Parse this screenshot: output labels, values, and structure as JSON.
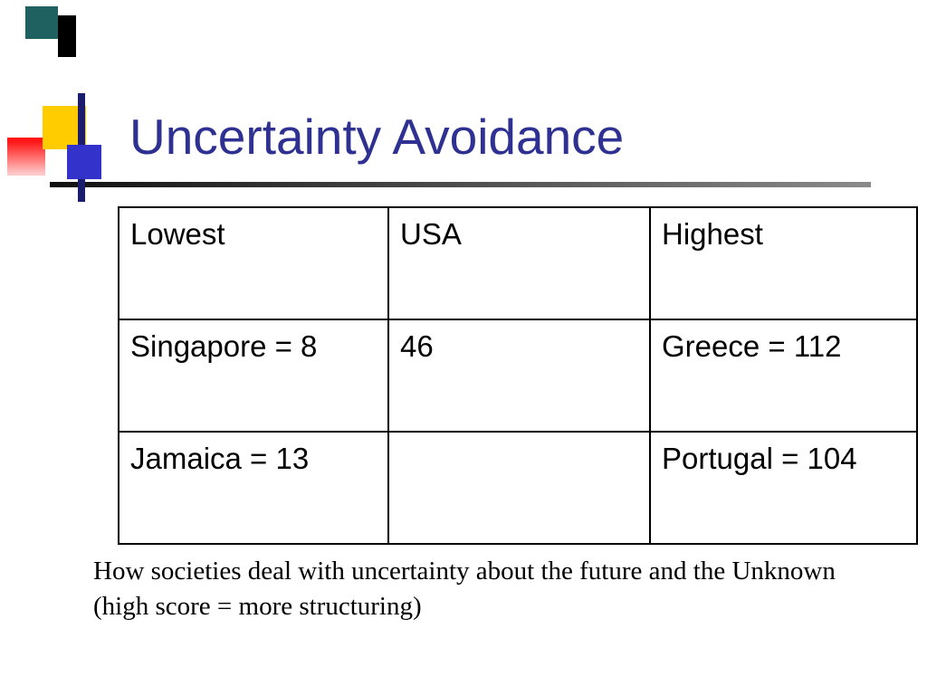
{
  "slide": {
    "title": "Uncertainty Avoidance",
    "caption": "How societies deal with uncertainty about the future and the Unknown (high score = more structuring)"
  },
  "table": {
    "headers": [
      "Lowest",
      "USA",
      "Highest"
    ],
    "rows": [
      [
        "Singapore = 8",
        "46",
        "Greece = 112"
      ],
      [
        "Jamaica = 13",
        "",
        "Portugal = 104"
      ]
    ]
  },
  "colors": {
    "title": "#2e3191",
    "table_border": "#000000",
    "accent_yellow": "#ffcc00",
    "accent_blue": "#3333cc",
    "accent_red": "#ff1515",
    "accent_teal": "#1f6060",
    "rule_dark": "#101010"
  }
}
